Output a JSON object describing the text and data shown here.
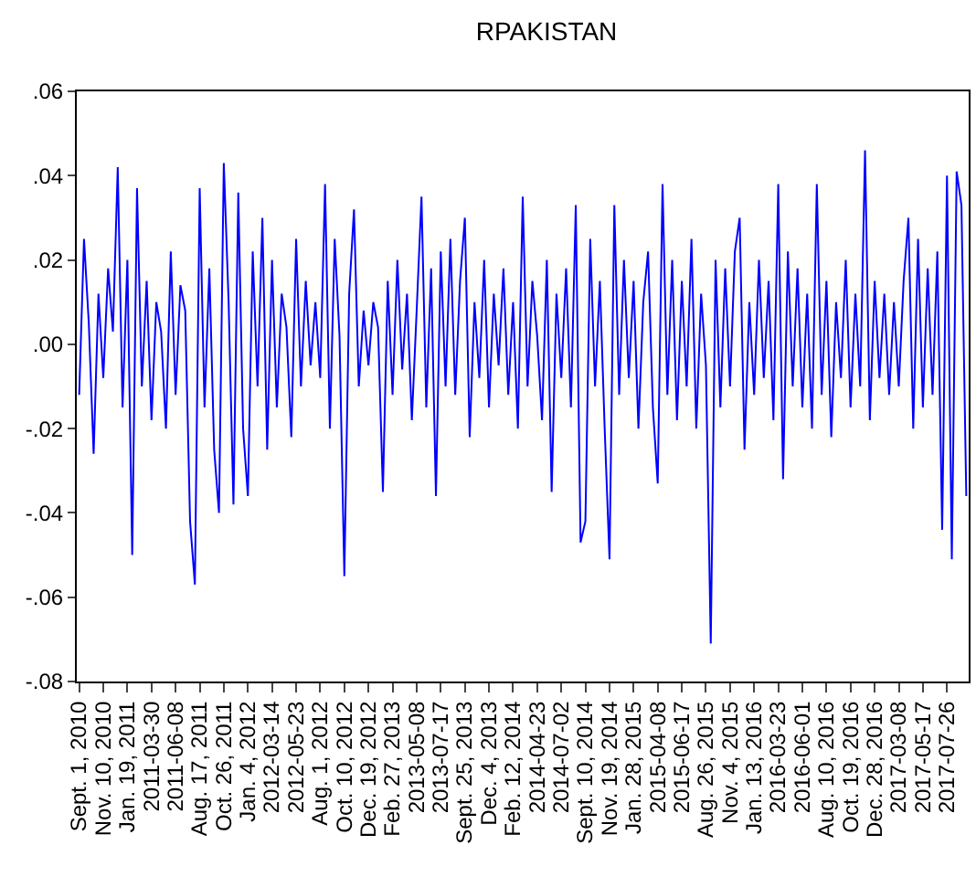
{
  "chart_data": {
    "type": "line",
    "title": "RPAKISTAN",
    "categories": [
      "Sept. 1, 2010",
      null,
      null,
      null,
      null,
      "Nov. 10, 2010",
      null,
      null,
      null,
      null,
      "Jan. 19, 2011",
      null,
      null,
      null,
      null,
      "2011-03-30",
      null,
      null,
      null,
      null,
      "2011-06-08",
      null,
      null,
      null,
      null,
      "Aug. 17, 2011",
      null,
      null,
      null,
      null,
      "Oct. 26, 2011",
      null,
      null,
      null,
      null,
      "Jan. 4, 2012",
      null,
      null,
      null,
      null,
      "2012-03-14",
      null,
      null,
      null,
      null,
      "2012-05-23",
      null,
      null,
      null,
      null,
      "Aug. 1, 2012",
      null,
      null,
      null,
      null,
      "Oct. 10, 2012",
      null,
      null,
      null,
      null,
      "Dec. 19, 2012",
      null,
      null,
      null,
      null,
      "Feb. 27, 2013",
      null,
      null,
      null,
      null,
      "2013-05-08",
      null,
      null,
      null,
      null,
      "2013-07-17",
      null,
      null,
      null,
      null,
      "Sept. 25, 2013",
      null,
      null,
      null,
      null,
      "Dec. 4, 2013",
      null,
      null,
      null,
      null,
      "Feb. 12, 2014",
      null,
      null,
      null,
      null,
      "2014-04-23",
      null,
      null,
      null,
      null,
      "2014-07-02",
      null,
      null,
      null,
      null,
      "Sept. 10, 2014",
      null,
      null,
      null,
      null,
      "Nov. 19, 2014",
      null,
      null,
      null,
      null,
      "Jan. 28, 2015",
      null,
      null,
      null,
      null,
      "2015-04-08",
      null,
      null,
      null,
      null,
      "2015-06-17",
      null,
      null,
      null,
      null,
      "Aug. 26, 2015",
      null,
      null,
      null,
      null,
      "Nov. 4, 2015",
      null,
      null,
      null,
      null,
      "Jan. 13, 2016",
      null,
      null,
      null,
      null,
      "2016-03-23",
      null,
      null,
      null,
      null,
      "2016-06-01",
      null,
      null,
      null,
      null,
      "Aug. 10, 2016",
      null,
      null,
      null,
      null,
      "Oct. 19, 2016",
      null,
      null,
      null,
      null,
      "Dec. 28, 2016",
      null,
      null,
      null,
      null,
      "2017-03-08",
      null,
      null,
      null,
      null,
      "2017-05-17",
      null,
      null,
      null,
      null,
      "2017-07-26",
      null,
      null,
      null,
      null
    ],
    "series": [
      {
        "color": "#0000ff",
        "values": [
          -0.012,
          0.025,
          0.005,
          -0.026,
          0.012,
          -0.008,
          0.018,
          0.003,
          0.042,
          -0.015,
          0.02,
          -0.05,
          0.037,
          -0.01,
          0.015,
          -0.018,
          0.01,
          0.003,
          -0.02,
          0.022,
          -0.012,
          0.014,
          0.008,
          -0.042,
          -0.057,
          0.037,
          -0.015,
          0.018,
          -0.025,
          -0.04,
          0.043,
          0.01,
          -0.038,
          0.036,
          -0.02,
          -0.036,
          0.022,
          -0.01,
          0.03,
          -0.025,
          0.02,
          -0.015,
          0.012,
          0.004,
          -0.022,
          0.025,
          -0.01,
          0.015,
          -0.005,
          0.01,
          -0.008,
          0.038,
          -0.02,
          0.025,
          0.002,
          -0.055,
          0.012,
          0.032,
          -0.01,
          0.008,
          -0.005,
          0.01,
          0.004,
          -0.035,
          0.015,
          -0.012,
          0.02,
          -0.006,
          0.012,
          -0.018,
          0.008,
          0.035,
          -0.015,
          0.018,
          -0.036,
          0.022,
          -0.01,
          0.025,
          -0.012,
          0.015,
          0.03,
          -0.022,
          0.01,
          -0.008,
          0.02,
          -0.015,
          0.012,
          -0.005,
          0.018,
          -0.012,
          0.01,
          -0.02,
          0.035,
          -0.01,
          0.015,
          0.002,
          -0.018,
          0.02,
          -0.035,
          0.012,
          -0.008,
          0.018,
          -0.015,
          0.033,
          -0.047,
          -0.042,
          0.025,
          -0.01,
          0.015,
          -0.02,
          -0.051,
          0.033,
          -0.012,
          0.02,
          -0.008,
          0.015,
          -0.02,
          0.01,
          0.022,
          -0.015,
          -0.033,
          0.038,
          -0.012,
          0.02,
          -0.018,
          0.015,
          -0.01,
          0.025,
          -0.02,
          0.012,
          -0.005,
          -0.071,
          0.02,
          -0.015,
          0.018,
          -0.01,
          0.022,
          0.03,
          -0.025,
          0.01,
          -0.012,
          0.02,
          -0.008,
          0.015,
          -0.018,
          0.038,
          -0.032,
          0.022,
          -0.01,
          0.018,
          -0.015,
          0.012,
          -0.02,
          0.038,
          -0.012,
          0.015,
          -0.022,
          0.01,
          -0.008,
          0.02,
          -0.015,
          0.012,
          -0.01,
          0.046,
          -0.018,
          0.015,
          -0.008,
          0.012,
          -0.012,
          0.01,
          -0.01,
          0.015,
          0.03,
          -0.02,
          0.025,
          -0.015,
          0.018,
          -0.012,
          0.022,
          -0.044,
          0.04,
          -0.051,
          0.041,
          0.033,
          -0.036
        ]
      }
    ],
    "ylim": [
      -0.08,
      0.06
    ],
    "yticks": [
      {
        "value": -0.08,
        "label": "-.08"
      },
      {
        "value": -0.06,
        "label": "-.06"
      },
      {
        "value": -0.04,
        "label": "-.04"
      },
      {
        "value": -0.02,
        "label": "-.02"
      },
      {
        "value": 0,
        "label": ".00"
      },
      {
        "value": 0.02,
        "label": ".02"
      },
      {
        "value": 0.04,
        "label": ".04"
      },
      {
        "value": 0.06,
        "label": ".06"
      }
    ],
    "marker": "none",
    "line_style": "solid"
  }
}
